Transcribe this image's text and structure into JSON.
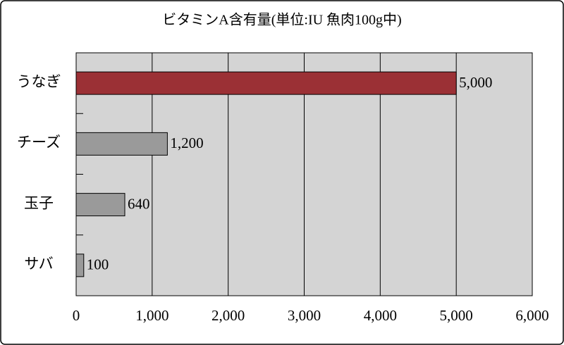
{
  "chart_data": {
    "type": "hbar",
    "title": "ビタミンA含有量(単位:IU 魚肉100g中)",
    "categories": [
      "うなぎ",
      "チーズ",
      "玉子",
      "サバ"
    ],
    "values": [
      5000,
      1200,
      640,
      100
    ],
    "value_labels": [
      "5,000",
      "1,200",
      "640",
      "100"
    ],
    "colors": [
      "#9b3035",
      "#9a9a9a",
      "#9a9a9a",
      "#9a9a9a"
    ],
    "xlim": [
      0,
      6000
    ],
    "xticks": [
      0,
      {
        "value": 1000,
        "label": "1,000"
      },
      {
        "value": 2000,
        "label": "2,000"
      },
      {
        "value": 3000,
        "label": "3,000"
      },
      {
        "value": 4000,
        "label": "4,000"
      },
      {
        "value": 5000,
        "label": "5,000"
      },
      {
        "value": 6000,
        "label": "6,000"
      }
    ],
    "grid": true
  }
}
